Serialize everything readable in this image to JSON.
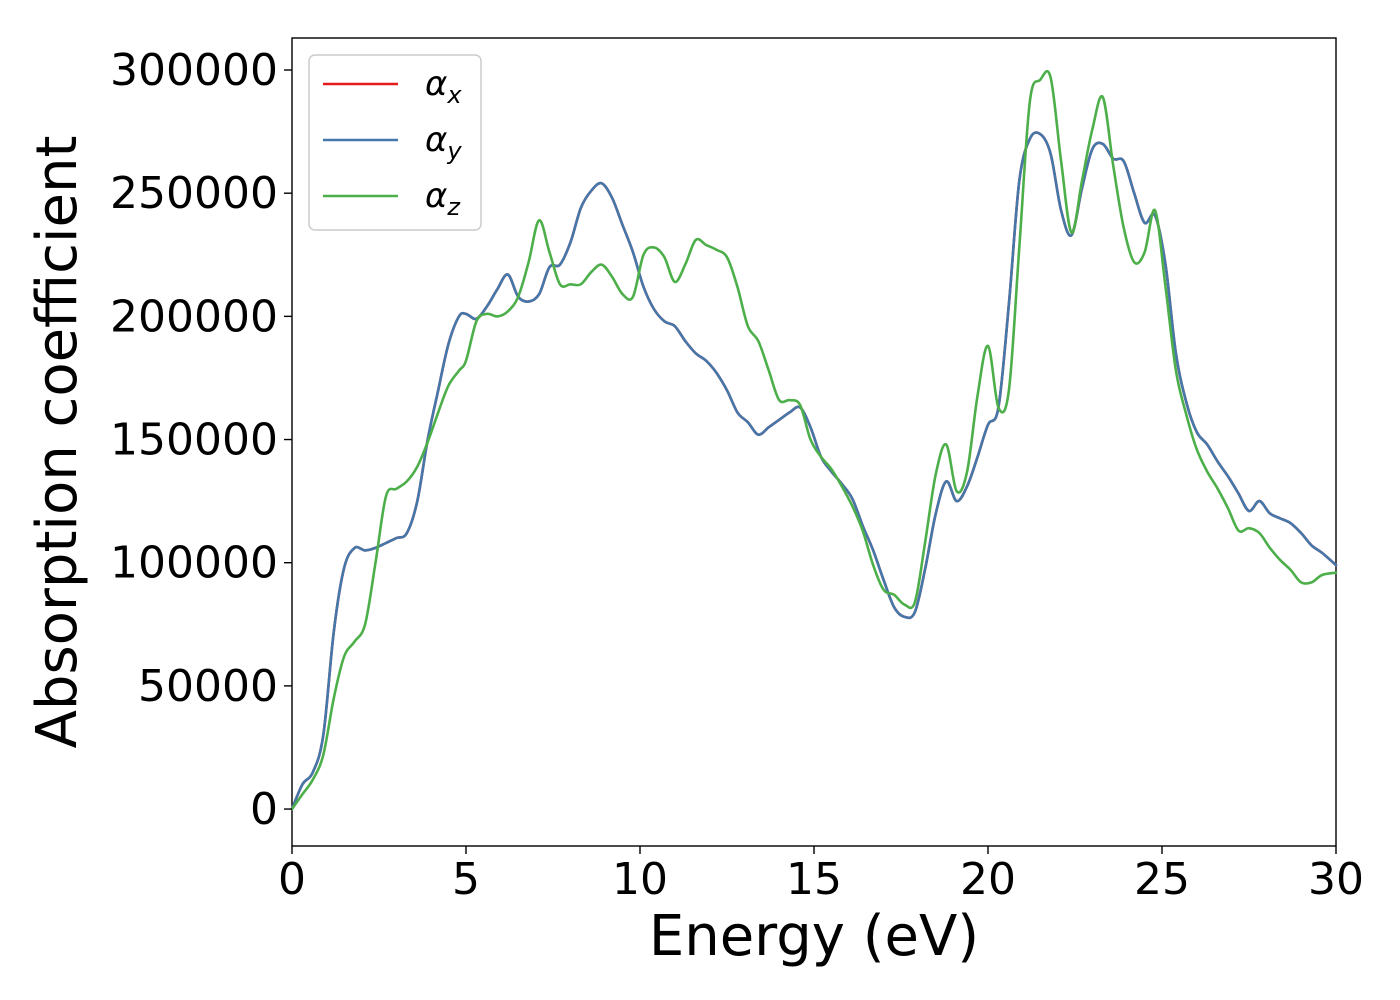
{
  "chart_data": {
    "type": "line",
    "xlabel": "Energy (eV)",
    "ylabel": "Absorption coefficient",
    "xlim": [
      0,
      30
    ],
    "ylim": [
      -15000,
      313000
    ],
    "xticks": [
      0,
      5,
      10,
      15,
      20,
      25,
      30
    ],
    "xtick_labels": [
      "0",
      "5",
      "10",
      "15",
      "20",
      "25",
      "30"
    ],
    "yticks": [
      0,
      50000,
      100000,
      150000,
      200000,
      250000,
      300000
    ],
    "ytick_labels": [
      "0",
      "50000",
      "100000",
      "150000",
      "200000",
      "250000",
      "300000"
    ],
    "grid": false,
    "legend_position": "top-left",
    "series": [
      {
        "name": "α",
        "subscript": "x",
        "color": "#e41a1c",
        "x": [
          0,
          0.3,
          0.6,
          0.9,
          1.2,
          1.5,
          1.8,
          2.1,
          2.4,
          2.7,
          3.0,
          3.3,
          3.6,
          3.9,
          4.2,
          4.5,
          4.8,
          5.0,
          5.3,
          5.6,
          5.9,
          6.2,
          6.5,
          6.8,
          7.1,
          7.4,
          7.7,
          8.0,
          8.3,
          8.6,
          8.9,
          9.2,
          9.5,
          9.8,
          10.1,
          10.4,
          10.7,
          11.0,
          11.3,
          11.6,
          11.9,
          12.2,
          12.5,
          12.8,
          13.1,
          13.4,
          13.7,
          14.0,
          14.3,
          14.6,
          14.9,
          15.2,
          15.5,
          15.8,
          16.1,
          16.4,
          16.7,
          17.0,
          17.3,
          17.6,
          17.9,
          18.2,
          18.5,
          18.8,
          19.1,
          19.4,
          19.7,
          20.0,
          20.3,
          20.6,
          20.9,
          21.2,
          21.5,
          21.8,
          22.1,
          22.4,
          22.7,
          23.0,
          23.3,
          23.6,
          23.9,
          24.2,
          24.5,
          24.8,
          25.1,
          25.4,
          25.7,
          26.0,
          26.3,
          26.6,
          26.9,
          27.2,
          27.5,
          27.8,
          28.1,
          28.4,
          28.7,
          29.0,
          29.3,
          29.6,
          30.0
        ],
        "values": [
          0,
          10000,
          15000,
          30000,
          72000,
          98000,
          106000,
          105000,
          106000,
          108000,
          110000,
          112000,
          125000,
          150000,
          170000,
          189000,
          200000,
          201000,
          199000,
          204000,
          211000,
          217000,
          208000,
          206000,
          209000,
          220000,
          221000,
          230000,
          244000,
          251000,
          254000,
          248000,
          237000,
          226000,
          212000,
          203000,
          198000,
          196000,
          190000,
          185000,
          182000,
          177000,
          170000,
          161000,
          157000,
          152000,
          155000,
          158000,
          161000,
          163000,
          155000,
          143000,
          137000,
          132000,
          126000,
          115000,
          105000,
          93000,
          82000,
          78000,
          80000,
          98000,
          120000,
          133000,
          125000,
          131000,
          143000,
          156000,
          163000,
          205000,
          255000,
          272000,
          274000,
          266000,
          243000,
          233000,
          252000,
          268000,
          270000,
          264000,
          263000,
          250000,
          238000,
          241000,
          221000,
          185000,
          165000,
          153000,
          148000,
          141000,
          135000,
          128000,
          121000,
          125000,
          120000,
          118000,
          116000,
          112000,
          107000,
          104000,
          99000
        ]
      },
      {
        "name": "α",
        "subscript": "y",
        "color": "#4477aa",
        "x": [
          0,
          0.3,
          0.6,
          0.9,
          1.2,
          1.5,
          1.8,
          2.1,
          2.4,
          2.7,
          3.0,
          3.3,
          3.6,
          3.9,
          4.2,
          4.5,
          4.8,
          5.0,
          5.3,
          5.6,
          5.9,
          6.2,
          6.5,
          6.8,
          7.1,
          7.4,
          7.7,
          8.0,
          8.3,
          8.6,
          8.9,
          9.2,
          9.5,
          9.8,
          10.1,
          10.4,
          10.7,
          11.0,
          11.3,
          11.6,
          11.9,
          12.2,
          12.5,
          12.8,
          13.1,
          13.4,
          13.7,
          14.0,
          14.3,
          14.6,
          14.9,
          15.2,
          15.5,
          15.8,
          16.1,
          16.4,
          16.7,
          17.0,
          17.3,
          17.6,
          17.9,
          18.2,
          18.5,
          18.8,
          19.1,
          19.4,
          19.7,
          20.0,
          20.3,
          20.6,
          20.9,
          21.2,
          21.5,
          21.8,
          22.1,
          22.4,
          22.7,
          23.0,
          23.3,
          23.6,
          23.9,
          24.2,
          24.5,
          24.8,
          25.1,
          25.4,
          25.7,
          26.0,
          26.3,
          26.6,
          26.9,
          27.2,
          27.5,
          27.8,
          28.1,
          28.4,
          28.7,
          29.0,
          29.3,
          29.6,
          30.0
        ],
        "values": [
          0,
          10000,
          15000,
          30000,
          72000,
          98000,
          106000,
          105000,
          106000,
          108000,
          110000,
          112000,
          125000,
          150000,
          170000,
          189000,
          200000,
          201000,
          199000,
          204000,
          211000,
          217000,
          208000,
          206000,
          209000,
          220000,
          221000,
          230000,
          244000,
          251000,
          254000,
          248000,
          237000,
          226000,
          212000,
          203000,
          198000,
          196000,
          190000,
          185000,
          182000,
          177000,
          170000,
          161000,
          157000,
          152000,
          155000,
          158000,
          161000,
          163000,
          155000,
          143000,
          137000,
          132000,
          126000,
          115000,
          105000,
          93000,
          82000,
          78000,
          80000,
          98000,
          120000,
          133000,
          125000,
          131000,
          143000,
          156000,
          163000,
          205000,
          255000,
          272000,
          274000,
          266000,
          243000,
          233000,
          252000,
          268000,
          270000,
          264000,
          263000,
          250000,
          238000,
          241000,
          221000,
          185000,
          165000,
          153000,
          148000,
          141000,
          135000,
          128000,
          121000,
          125000,
          120000,
          118000,
          116000,
          112000,
          107000,
          104000,
          99000
        ]
      },
      {
        "name": "α",
        "subscript": "z",
        "color": "#4daf4a",
        "x": [
          0,
          0.3,
          0.6,
          0.9,
          1.2,
          1.5,
          1.8,
          2.1,
          2.4,
          2.7,
          3.0,
          3.3,
          3.6,
          3.9,
          4.2,
          4.5,
          4.8,
          5.0,
          5.3,
          5.6,
          5.9,
          6.2,
          6.5,
          6.8,
          7.1,
          7.4,
          7.7,
          8.0,
          8.3,
          8.6,
          8.9,
          9.2,
          9.5,
          9.8,
          10.1,
          10.4,
          10.7,
          11.0,
          11.3,
          11.6,
          11.9,
          12.2,
          12.5,
          12.8,
          13.1,
          13.4,
          13.7,
          14.0,
          14.3,
          14.6,
          14.9,
          15.2,
          15.5,
          15.8,
          16.1,
          16.4,
          16.7,
          17.0,
          17.3,
          17.6,
          17.9,
          18.2,
          18.5,
          18.8,
          19.1,
          19.4,
          19.7,
          20.0,
          20.3,
          20.6,
          20.9,
          21.2,
          21.5,
          21.8,
          22.1,
          22.4,
          22.7,
          23.0,
          23.3,
          23.6,
          23.9,
          24.2,
          24.5,
          24.8,
          25.1,
          25.4,
          25.7,
          26.0,
          26.3,
          26.6,
          26.9,
          27.2,
          27.5,
          27.8,
          28.1,
          28.4,
          28.7,
          29.0,
          29.3,
          29.6,
          30.0
        ],
        "values": [
          0,
          6000,
          12000,
          22000,
          45000,
          62000,
          68000,
          75000,
          100000,
          127000,
          130000,
          133000,
          139000,
          149000,
          161000,
          172000,
          178000,
          182000,
          198000,
          201000,
          200000,
          202000,
          208000,
          222000,
          239000,
          226000,
          213000,
          213000,
          213000,
          218000,
          221000,
          216000,
          209000,
          208000,
          225000,
          228000,
          224000,
          214000,
          221000,
          231000,
          229000,
          227000,
          224000,
          212000,
          196000,
          190000,
          178000,
          166000,
          166000,
          164000,
          150000,
          143000,
          138000,
          131000,
          123000,
          113000,
          99000,
          89000,
          87000,
          83000,
          84000,
          109000,
          136000,
          148000,
          129000,
          137000,
          168000,
          188000,
          163000,
          170000,
          228000,
          287000,
          296000,
          297000,
          263000,
          234000,
          255000,
          276000,
          289000,
          261000,
          236000,
          222000,
          226000,
          243000,
          212000,
          178000,
          160000,
          146000,
          137000,
          130000,
          122000,
          113000,
          114000,
          112000,
          106000,
          101000,
          97000,
          92000,
          92000,
          95000,
          96000
        ]
      }
    ]
  }
}
